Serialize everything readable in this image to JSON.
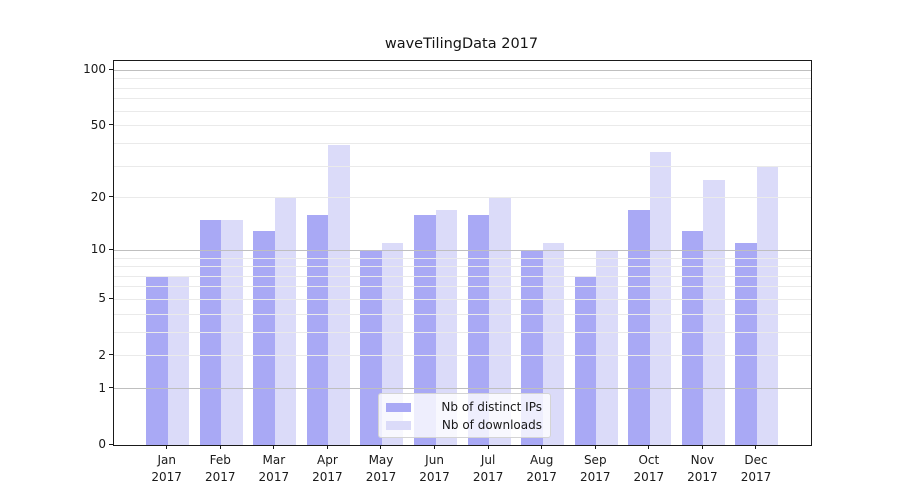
{
  "title": "waveTilingData 2017",
  "chart_data": {
    "type": "bar",
    "title": "waveTilingData 2017",
    "xlabel": "",
    "ylabel": "",
    "year": "2017",
    "categories": [
      "Jan 2017",
      "Feb 2017",
      "Mar 2017",
      "Apr 2017",
      "May 2017",
      "Jun 2017",
      "Jul 2017",
      "Aug 2017",
      "Sep 2017",
      "Oct 2017",
      "Nov 2017",
      "Dec 2017"
    ],
    "series": [
      {
        "name": "Nb of distinct IPs",
        "color": "#a9a9f5",
        "values": [
          7,
          15,
          13,
          16,
          10,
          16,
          16,
          10,
          7,
          17,
          13,
          11
        ]
      },
      {
        "name": "Nb of downloads",
        "color": "#dbdbf9",
        "values": [
          7,
          15,
          20,
          39,
          11,
          17,
          20,
          11,
          10,
          36,
          25,
          30
        ]
      }
    ],
    "y_scale": "log10(1+value)",
    "ylim": [
      0,
      112
    ],
    "y_ticks": [
      100,
      50,
      20,
      10,
      5,
      2,
      1,
      0
    ],
    "major_gridlines": [
      1,
      10,
      100
    ],
    "minor_gridlines": [
      2,
      3,
      4,
      5,
      6,
      7,
      8,
      9,
      20,
      30,
      40,
      50,
      60,
      70,
      80,
      90
    ],
    "grid": "on",
    "legend_position": "lower-center",
    "colors": {
      "bar_distinct_ips": "#a9a9f5",
      "bar_downloads": "#dbdbf9",
      "major_grid": "#bfbfbf",
      "minor_grid": "#eaeaea",
      "spine": "#1a1a1a",
      "background": "#ffffff"
    }
  }
}
